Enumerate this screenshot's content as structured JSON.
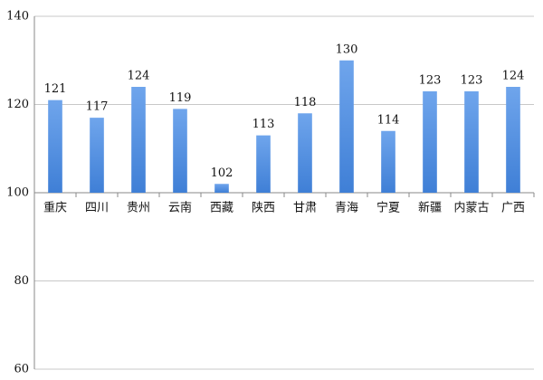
{
  "chart_data": {
    "type": "bar",
    "categories": [
      "重庆",
      "四川",
      "贵州",
      "云南",
      "西藏",
      "陕西",
      "甘肃",
      "青海",
      "宁夏",
      "新疆",
      "内蒙古",
      "广西"
    ],
    "values": [
      121,
      117,
      124,
      119,
      102,
      113,
      118,
      130,
      114,
      123,
      123,
      124
    ],
    "color": "#3f7fd6",
    "ylim": [
      60,
      140
    ],
    "yticks": [
      60,
      80,
      100,
      120,
      140
    ],
    "grid": true,
    "xaxis_at": 100,
    "data_labels": true
  }
}
